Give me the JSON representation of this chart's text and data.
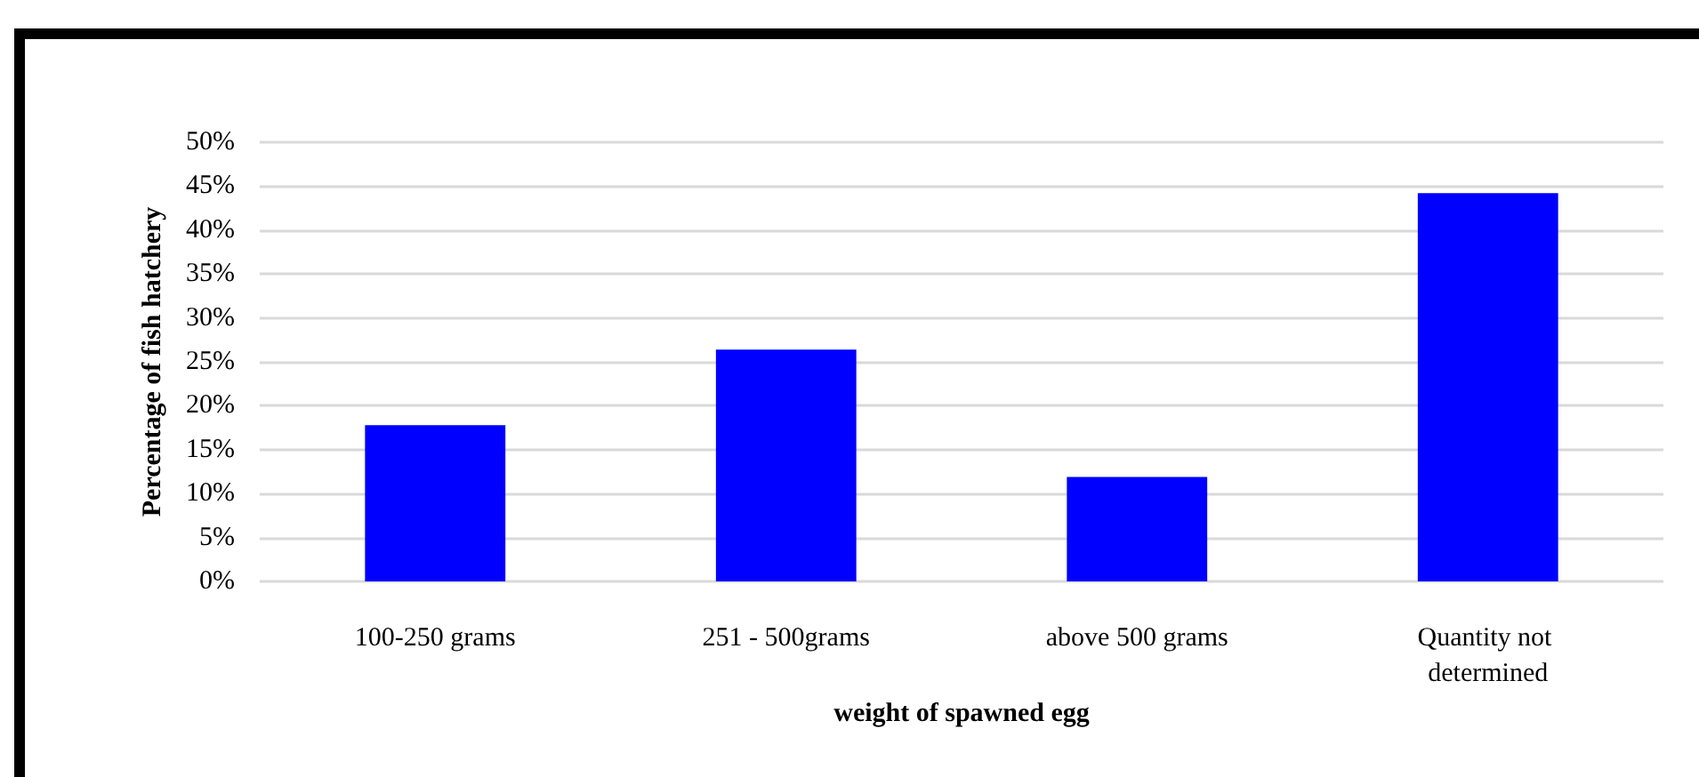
{
  "chart_data": {
    "type": "bar",
    "xlabel": "weight of spawned egg",
    "ylabel": "Percentage of fish hatchery",
    "categories": [
      "100-250 grams",
      "251 - 500grams",
      "above 500 grams",
      "Quantity not determined"
    ],
    "values": [
      17.8,
      26.4,
      11.9,
      44.2
    ],
    "color": "#0000ff",
    "ylim": [
      0,
      50
    ],
    "yticks": [
      {
        "value": 0,
        "label": "0%"
      },
      {
        "value": 5,
        "label": "5%"
      },
      {
        "value": 10,
        "label": "10%"
      },
      {
        "value": 15,
        "label": "15%"
      },
      {
        "value": 20,
        "label": "20%"
      },
      {
        "value": 25,
        "label": "25%"
      },
      {
        "value": 30,
        "label": "30%"
      },
      {
        "value": 35,
        "label": "35%"
      },
      {
        "value": 40,
        "label": "40%"
      },
      {
        "value": 45,
        "label": "45%"
      },
      {
        "value": 50,
        "label": "50%"
      }
    ],
    "grid": "y"
  }
}
